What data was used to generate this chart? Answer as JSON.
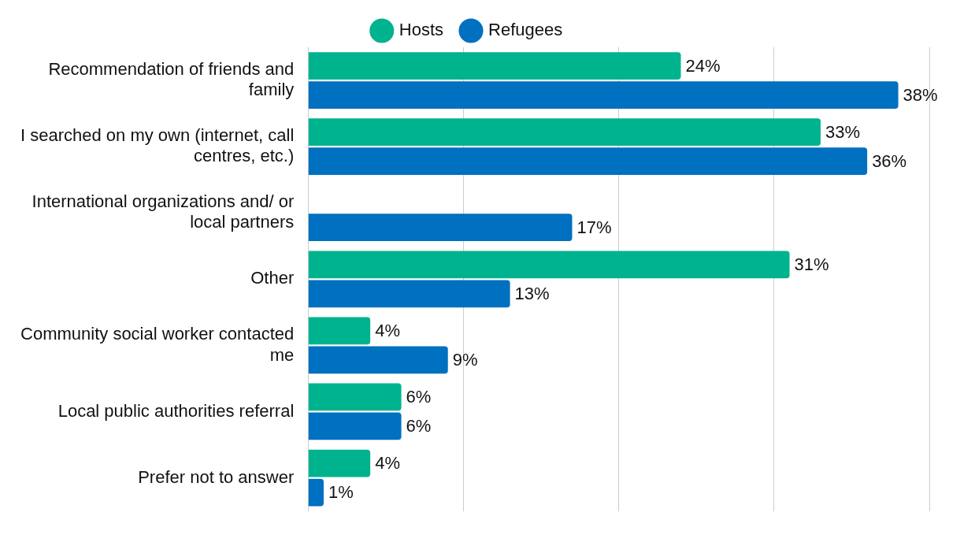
{
  "chart_data": {
    "type": "bar",
    "orientation": "horizontal",
    "categories": [
      "Recommendation of friends and family",
      "I searched on my own (internet, call centres, etc.)",
      "International organizations and/ or local partners",
      "Other",
      "Community social worker contacted me",
      "Local public authorities referral",
      "Prefer not to answer"
    ],
    "series": [
      {
        "name": "Hosts",
        "color": "#00b38f",
        "values": [
          24,
          33,
          null,
          31,
          4,
          6,
          4
        ],
        "value_labels": [
          "24%",
          "33%",
          null,
          "31%",
          "4%",
          "6%",
          "4%"
        ]
      },
      {
        "name": "Refugees",
        "color": "#0070c0",
        "values": [
          38,
          36,
          17,
          13,
          9,
          6,
          1
        ],
        "value_labels": [
          "38%",
          "36%",
          "17%",
          "13%",
          "9%",
          "6%",
          "1%"
        ]
      }
    ],
    "xlim": [
      0,
      40
    ],
    "xticks": [
      {
        "value": 0,
        "label": null
      },
      {
        "value": 10,
        "label": null
      },
      {
        "value": 20,
        "label": null
      },
      {
        "value": 30,
        "label": null
      },
      {
        "value": 40,
        "label": null
      }
    ],
    "tick_labels": "y",
    "grid": "x",
    "legend": "top"
  }
}
